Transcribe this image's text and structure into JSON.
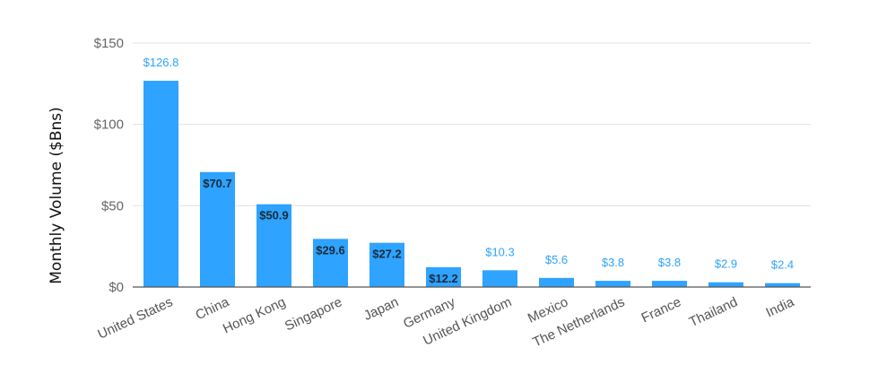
{
  "chart_data": {
    "type": "bar",
    "title": "",
    "xlabel": "",
    "ylabel": "Monthly Volume ($Bns)",
    "ylim": [
      0,
      150
    ],
    "yticks": [
      0,
      50,
      100,
      150
    ],
    "ytick_labels": [
      "$0",
      "$50",
      "$100",
      "$150"
    ],
    "grid": true,
    "categories": [
      "United States",
      "China",
      "Hong Kong",
      "Singapore",
      "Japan",
      "Germany",
      "United Kingdom",
      "Mexico",
      "The Netherlands",
      "France",
      "Thailand",
      "India"
    ],
    "values": [
      126.8,
      70.7,
      50.9,
      29.6,
      27.2,
      12.2,
      10.3,
      5.6,
      3.8,
      3.8,
      2.9,
      2.4
    ],
    "data_labels": [
      "$126.8",
      "$70.7",
      "$50.9",
      "$29.6",
      "$27.2",
      "$12.2",
      "$10.3",
      "$5.6",
      "$3.8",
      "$3.8",
      "$2.9",
      "$2.4"
    ],
    "colors": {
      "bar": "#2ea3ff",
      "label_outside": "#2ea3ff",
      "label_inside": "#1a2a3a",
      "grid": "#e0e0e0",
      "axis": "#555555"
    }
  }
}
